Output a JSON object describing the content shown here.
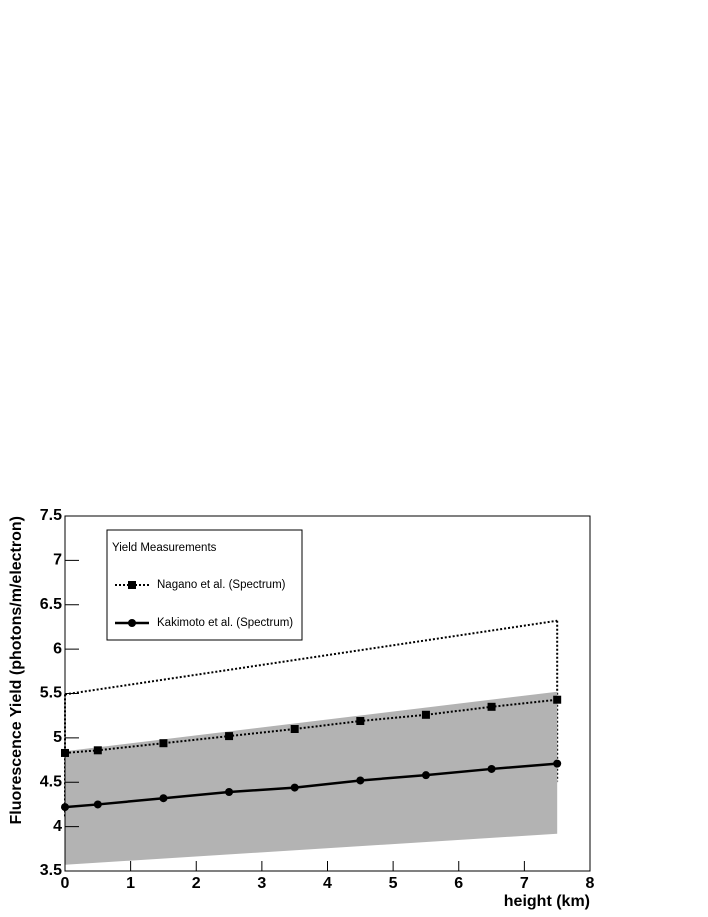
{
  "chart_data": {
    "type": "line",
    "x_label": "height (km)",
    "y_label": "Fluorescence Yield (photons/m/electron)",
    "legend_title": "Yield Measurements",
    "legend_position": "upper-left",
    "x": [
      0,
      0.5,
      1.5,
      2.5,
      3.5,
      4.5,
      5.5,
      6.5,
      7.5
    ],
    "band_x": [
      0,
      7.5
    ],
    "series": [
      {
        "name": "Nagano et al. (Spectrum)",
        "color": "#000000",
        "line_style": "dotted",
        "marker": "square",
        "values": [
          4.83,
          4.86,
          4.94,
          5.02,
          5.1,
          5.19,
          5.26,
          5.35,
          5.43
        ],
        "band_style": "dotted",
        "band_lower": [
          4.1,
          4.51
        ],
        "band_upper": [
          5.49,
          6.32
        ]
      },
      {
        "name": "Kakimoto et al. (Spectrum)",
        "color": "#000000",
        "line_style": "solid",
        "marker": "circle",
        "values": [
          4.22,
          4.25,
          4.32,
          4.39,
          4.44,
          4.52,
          4.58,
          4.65,
          4.71
        ],
        "band_style": "filled",
        "band_color": "#b3b3b3",
        "band_lower": [
          3.57,
          3.92
        ],
        "band_upper": [
          4.85,
          5.52
        ]
      }
    ],
    "xlim": [
      0,
      8
    ],
    "xticks": [
      0,
      1,
      2,
      3,
      4,
      5,
      6,
      7,
      8
    ],
    "ylim": [
      3.5,
      7.5
    ],
    "yticks": [
      3.5,
      4,
      4.5,
      5,
      5.5,
      6,
      6.5,
      7,
      7.5
    ]
  }
}
